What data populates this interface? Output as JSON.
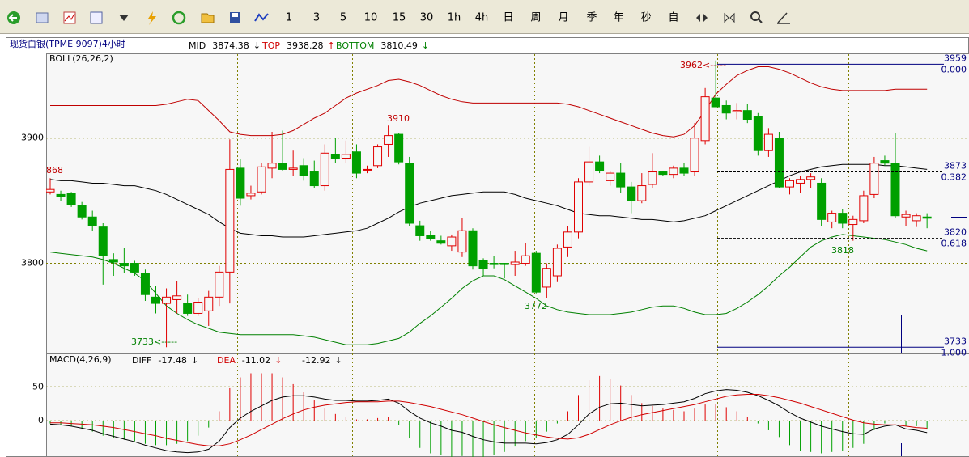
{
  "toolbar": {
    "buttons": [
      "1",
      "3",
      "5",
      "10",
      "15",
      "30",
      "1h",
      "4h",
      "日",
      "周",
      "月",
      "季",
      "年",
      "秒",
      "自"
    ]
  },
  "header": {
    "title": "现货白银(TPME 9097)4小时",
    "readouts": [
      {
        "label": "MID",
        "value": 3874.38,
        "arrow": "↓",
        "color": "#000000"
      },
      {
        "label": "TOP",
        "value": 3938.28,
        "arrow": "↑",
        "color": "#d00000"
      },
      {
        "label": "BOTTOM",
        "value": 3810.49,
        "arrow": "↓",
        "color": "#008000"
      }
    ]
  },
  "chart_data": [
    {
      "type": "candlestick",
      "title": "BOLL(26,26,2)",
      "up_color": "#e00000",
      "down_color": "#00a000",
      "open": [
        3857,
        3855,
        3856,
        3846,
        3837,
        3829,
        3803,
        3800,
        3800,
        3792,
        3773,
        3768,
        3771,
        3768,
        3760,
        3762,
        3773,
        3793,
        3876,
        3854,
        3857,
        3876,
        3880,
        3875,
        3878,
        3873,
        3862,
        3887,
        3884,
        3889,
        3875,
        3878,
        3895,
        3903,
        3880,
        3830,
        3822,
        3818,
        3814,
        3809,
        3826,
        3802,
        3800,
        3800,
        3799,
        3800,
        3808,
        3781,
        3790,
        3813,
        3825,
        3865,
        3881,
        3866,
        3872,
        3861,
        3850,
        3863,
        3873,
        3871,
        3876,
        3873,
        3898,
        3932,
        3926,
        3921,
        3922,
        3917,
        3890,
        3900,
        3861,
        3864,
        3867,
        3864,
        3833,
        3840,
        3831,
        3834,
        3855,
        3882,
        3880,
        3837,
        3834,
        3837
      ],
      "high": [
        3868,
        3858,
        3857,
        3849,
        3842,
        3832,
        3808,
        3812,
        3802,
        3795,
        3782,
        3780,
        3786,
        3775,
        3772,
        3778,
        3798,
        3899,
        3883,
        3862,
        3880,
        3905,
        3906,
        3890,
        3884,
        3882,
        3895,
        3900,
        3898,
        3895,
        3878,
        3895,
        3910,
        3904,
        3885,
        3834,
        3826,
        3822,
        3823,
        3836,
        3828,
        3804,
        3806,
        3800,
        3810,
        3816,
        3810,
        3800,
        3815,
        3830,
        3868,
        3893,
        3886,
        3874,
        3880,
        3865,
        3872,
        3888,
        3874,
        3878,
        3880,
        3912,
        3940,
        3962,
        3930,
        3928,
        3927,
        3920,
        3908,
        3905,
        3868,
        3870,
        3872,
        3868,
        3842,
        3843,
        3838,
        3858,
        3885,
        3886,
        3904,
        3842,
        3840,
        3840
      ],
      "low": [
        3855,
        3850,
        3845,
        3835,
        3826,
        3783,
        3790,
        3792,
        3790,
        3770,
        3760,
        3733,
        3760,
        3758,
        3758,
        3750,
        3766,
        3768,
        3846,
        3851,
        3855,
        3868,
        3874,
        3870,
        3866,
        3860,
        3858,
        3880,
        3880,
        3868,
        3872,
        3876,
        3885,
        3879,
        3830,
        3818,
        3818,
        3815,
        3810,
        3805,
        3795,
        3790,
        3796,
        3788,
        3790,
        3798,
        3776,
        3772,
        3785,
        3805,
        3820,
        3862,
        3872,
        3862,
        3856,
        3840,
        3848,
        3860,
        3870,
        3868,
        3870,
        3870,
        3895,
        3925,
        3915,
        3915,
        3912,
        3886,
        3885,
        3860,
        3855,
        3856,
        3860,
        3830,
        3828,
        3828,
        3818,
        3832,
        3852,
        3878,
        3836,
        3830,
        3829,
        3828
      ],
      "close": [
        3859,
        3853,
        3847,
        3837,
        3830,
        3806,
        3801,
        3798,
        3793,
        3775,
        3768,
        3773,
        3774,
        3760,
        3769,
        3773,
        3793,
        3875,
        3852,
        3856,
        3877,
        3880,
        3875,
        3876,
        3870,
        3862,
        3888,
        3884,
        3887,
        3872,
        3875,
        3893,
        3902,
        3881,
        3832,
        3822,
        3820,
        3816,
        3821,
        3826,
        3798,
        3796,
        3799,
        3799,
        3801,
        3806,
        3777,
        3796,
        3812,
        3825,
        3865,
        3881,
        3874,
        3872,
        3861,
        3850,
        3862,
        3873,
        3871,
        3876,
        3872,
        3900,
        3933,
        3925,
        3920,
        3922,
        3915,
        3890,
        3903,
        3861,
        3866,
        3867,
        3869,
        3835,
        3840,
        3832,
        3835,
        3854,
        3880,
        3880,
        3838,
        3839,
        3838,
        3836
      ],
      "series": [
        {
          "color": "#c00000",
          "values": [
            3926,
            3926,
            3926,
            3926,
            3926,
            3926,
            3926,
            3926,
            3926,
            3926,
            3926,
            3927,
            3929,
            3931,
            3930,
            3922,
            3914,
            3905,
            3903,
            3902,
            3902,
            3902,
            3903,
            3906,
            3911,
            3916,
            3920,
            3926,
            3932,
            3936,
            3939,
            3942,
            3946,
            3947,
            3945,
            3942,
            3938,
            3934,
            3931,
            3929,
            3928,
            3928,
            3928,
            3928,
            3928,
            3928,
            3928,
            3928,
            3928,
            3927,
            3925,
            3922,
            3919,
            3916,
            3913,
            3910,
            3907,
            3904,
            3902,
            3901,
            3903,
            3910,
            3922,
            3935,
            3943,
            3950,
            3954,
            3957,
            3957,
            3955,
            3952,
            3948,
            3944,
            3941,
            3939,
            3938,
            3938,
            3938,
            3938,
            3938,
            3939,
            3939,
            3939,
            3939
          ]
        },
        {
          "color": "#000000",
          "values": [
            3867,
            3866,
            3866,
            3865,
            3864,
            3864,
            3863,
            3862,
            3862,
            3860,
            3858,
            3855,
            3851,
            3847,
            3843,
            3839,
            3833,
            3828,
            3824,
            3823,
            3822,
            3822,
            3821,
            3821,
            3821,
            3822,
            3823,
            3824,
            3825,
            3826,
            3828,
            3832,
            3836,
            3841,
            3845,
            3848,
            3850,
            3852,
            3854,
            3855,
            3856,
            3857,
            3857,
            3857,
            3855,
            3852,
            3850,
            3848,
            3846,
            3843,
            3840,
            3839,
            3838,
            3838,
            3837,
            3836,
            3835,
            3835,
            3834,
            3833,
            3834,
            3836,
            3838,
            3842,
            3846,
            3850,
            3854,
            3858,
            3862,
            3866,
            3870,
            3873,
            3875,
            3877,
            3878,
            3879,
            3879,
            3879,
            3879,
            3878,
            3878,
            3877,
            3876,
            3875
          ]
        },
        {
          "color": "#008000",
          "values": [
            3809,
            3808,
            3807,
            3806,
            3805,
            3803,
            3800,
            3796,
            3792,
            3786,
            3776,
            3766,
            3760,
            3755,
            3751,
            3748,
            3745,
            3744,
            3743,
            3743,
            3743,
            3743,
            3743,
            3743,
            3742,
            3741,
            3739,
            3737,
            3735,
            3735,
            3735,
            3736,
            3738,
            3740,
            3745,
            3752,
            3758,
            3765,
            3772,
            3780,
            3786,
            3790,
            3790,
            3787,
            3782,
            3777,
            3772,
            3766,
            3763,
            3761,
            3760,
            3759,
            3759,
            3759,
            3760,
            3761,
            3763,
            3765,
            3766,
            3766,
            3764,
            3761,
            3759,
            3759,
            3760,
            3764,
            3769,
            3775,
            3782,
            3790,
            3797,
            3805,
            3813,
            3818,
            3821,
            3823,
            3822,
            3821,
            3820,
            3819,
            3817,
            3815,
            3812,
            3810
          ]
        }
      ],
      "ylim": [
        3728,
        3967
      ],
      "yticks": [
        3800,
        3900
      ],
      "grid": true,
      "annotations": [
        "3962<-----",
        "3910",
        "3772",
        "3733<-----",
        "3818",
        "868"
      ],
      "fib_levels": [
        {
          "value": 3959,
          "ratio": "0.000"
        },
        {
          "value": 3873,
          "ratio": "0.382"
        },
        {
          "value": 3820,
          "ratio": "0.618"
        },
        {
          "value": 3733,
          "ratio": "-1.000"
        }
      ]
    },
    {
      "type": "macd",
      "title": "MACD(4,26,9)",
      "readouts": [
        {
          "label": "DIFF",
          "value": -17.48,
          "arrow": "↓",
          "color": "#000000"
        },
        {
          "label": "DEA",
          "value": -11.02,
          "arrow": "↓",
          "color": "#d00000"
        },
        {
          "value": -12.92,
          "arrow": "↓",
          "color": "#000000"
        }
      ],
      "histogram": {
        "up_color": "#e00000",
        "down_color": "#00a000",
        "values": [
          -4,
          -6,
          -8,
          -12,
          -16,
          -22,
          -26,
          -28,
          -30,
          -34,
          -36,
          -36,
          -34,
          -30,
          -22,
          -10,
          14,
          48,
          64,
          70,
          70,
          70,
          64,
          54,
          42,
          30,
          18,
          10,
          6,
          2,
          2,
          4,
          6,
          -6,
          -26,
          -40,
          -48,
          -50,
          -54,
          -52,
          -54,
          -54,
          -50,
          -46,
          -38,
          -30,
          -26,
          -16,
          -4,
          14,
          38,
          60,
          66,
          62,
          52,
          38,
          26,
          22,
          18,
          16,
          14,
          18,
          24,
          24,
          20,
          14,
          6,
          -4,
          -14,
          -24,
          -36,
          -44,
          -46,
          -48,
          -46,
          -44,
          -40,
          -34,
          -14,
          -4,
          0,
          -8,
          -8,
          -12.92
        ]
      },
      "series": [
        {
          "color": "#000000",
          "values": [
            -5,
            -6,
            -8,
            -11,
            -14,
            -19,
            -23,
            -27,
            -31,
            -36,
            -40,
            -44,
            -46,
            -47,
            -46,
            -42,
            -30,
            -10,
            4,
            14,
            22,
            30,
            35,
            37,
            37,
            35,
            32,
            30,
            30,
            29,
            29,
            30,
            32,
            26,
            14,
            4,
            -3,
            -8,
            -14,
            -17,
            -23,
            -28,
            -31,
            -33,
            -33,
            -33,
            -34,
            -32,
            -28,
            -20,
            -6,
            10,
            20,
            25,
            26,
            24,
            22,
            23,
            24,
            26,
            28,
            33,
            40,
            44,
            46,
            45,
            42,
            37,
            30,
            22,
            12,
            4,
            -2,
            -8,
            -12,
            -16,
            -19,
            -20,
            -12,
            -8,
            -6,
            -12,
            -14,
            -17.48
          ]
        },
        {
          "color": "#d00000",
          "values": [
            -3,
            -3,
            -4,
            -5,
            -6,
            -8,
            -10,
            -13,
            -16,
            -19,
            -22,
            -26,
            -29,
            -32,
            -35,
            -37,
            -37,
            -34,
            -28,
            -21,
            -13,
            -5,
            3,
            10,
            16,
            20,
            23,
            25,
            27,
            28,
            28,
            28,
            29,
            29,
            27,
            24,
            21,
            17,
            13,
            9,
            4,
            -1,
            -6,
            -10,
            -14,
            -18,
            -21,
            -24,
            -26,
            -27,
            -25,
            -20,
            -13,
            -6,
            0,
            5,
            9,
            12,
            15,
            18,
            21,
            24,
            28,
            32,
            36,
            38,
            39,
            39,
            37,
            34,
            30,
            26,
            21,
            16,
            11,
            6,
            1,
            -3,
            -5,
            -6,
            -6,
            -8,
            -10,
            -11.02
          ]
        }
      ],
      "ylim": [
        -51,
        98
      ],
      "yticks": [
        0,
        50
      ],
      "grid": true
    }
  ]
}
